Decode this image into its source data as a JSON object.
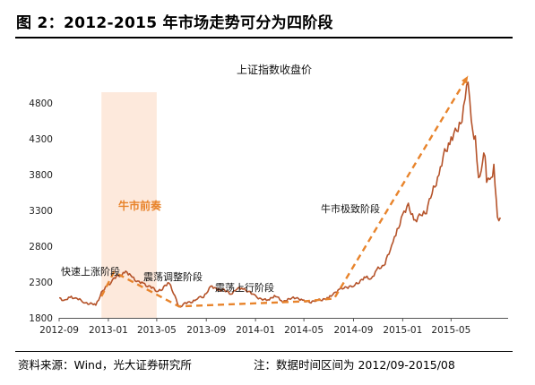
{
  "figure": {
    "title": "图 2：2012-2015 年市场走势可分为四阶段",
    "source": "资料来源：Wind，光大证券研究所",
    "note": "注：数据时间区间为 2012/09-2015/08"
  },
  "chart_data": {
    "type": "line",
    "title": "上证指数收盘价",
    "xlabel": "",
    "ylabel": "",
    "ylim": [
      1800,
      5200
    ],
    "y_ticks": [
      1800,
      2300,
      2800,
      3300,
      3800,
      4300,
      4800
    ],
    "x_ticks": [
      "2012-09",
      "2013-01",
      "2013-05",
      "2013-09",
      "2014-01",
      "2014-05",
      "2014-09",
      "2015-01",
      "2015-05"
    ],
    "grid": false,
    "legend": "none",
    "colors": {
      "line": "#b5532a",
      "trend": "#e8842c",
      "highlight": "#fde9dc",
      "bull_label": "#e8842c"
    },
    "series": [
      {
        "x": [
          "2012-09-01",
          "2012-09-15",
          "2012-10-01",
          "2012-10-15",
          "2012-11-01",
          "2012-11-15",
          "2012-12-01",
          "2012-12-15",
          "2013-01-01",
          "2013-01-15",
          "2013-02-01",
          "2013-02-10",
          "2013-03-01",
          "2013-03-15",
          "2013-04-01",
          "2013-04-15",
          "2013-05-01",
          "2013-05-15",
          "2013-06-01",
          "2013-06-15",
          "2013-06-25",
          "2013-07-10",
          "2013-07-25",
          "2013-08-10",
          "2013-08-25",
          "2013-09-12",
          "2013-10-01",
          "2013-10-15",
          "2013-11-01",
          "2013-11-15",
          "2013-12-01",
          "2013-12-15",
          "2014-01-01",
          "2014-01-15",
          "2014-02-01",
          "2014-02-20",
          "2014-03-10",
          "2014-04-01",
          "2014-04-15",
          "2014-05-01",
          "2014-05-15",
          "2014-06-01",
          "2014-06-15",
          "2014-07-01",
          "2014-07-15",
          "2014-08-01",
          "2014-08-15",
          "2014-09-01",
          "2014-09-15",
          "2014-10-01",
          "2014-10-15",
          "2014-11-01",
          "2014-11-15",
          "2014-12-01",
          "2014-12-08",
          "2014-12-15",
          "2015-01-01",
          "2015-01-15",
          "2015-02-01",
          "2015-02-15",
          "2015-03-01",
          "2015-03-15",
          "2015-04-01",
          "2015-04-15",
          "2015-05-01",
          "2015-05-15",
          "2015-05-28",
          "2015-06-05",
          "2015-06-12",
          "2015-06-20",
          "2015-06-30",
          "2015-07-08",
          "2015-07-15",
          "2015-07-24",
          "2015-07-28",
          "2015-08-05",
          "2015-08-15",
          "2015-08-24",
          "2015-08-31"
        ],
        "values": [
          2080,
          2040,
          2090,
          2070,
          2020,
          2000,
          1980,
          2150,
          2260,
          2350,
          2400,
          2440,
          2380,
          2300,
          2270,
          2230,
          2180,
          2200,
          2300,
          2100,
          1950,
          2000,
          2020,
          2070,
          2100,
          2230,
          2200,
          2180,
          2140,
          2200,
          2220,
          2160,
          2110,
          2050,
          2060,
          2100,
          2030,
          2070,
          2080,
          2030,
          2020,
          2040,
          2060,
          2070,
          2150,
          2200,
          2230,
          2240,
          2310,
          2360,
          2350,
          2480,
          2530,
          2740,
          2900,
          2950,
          3250,
          3350,
          3160,
          3230,
          3300,
          3550,
          3800,
          4100,
          4300,
          4400,
          4600,
          4900,
          5100,
          4500,
          4300,
          3750,
          3900,
          4100,
          3700,
          3700,
          3900,
          3200,
          3200
        ]
      }
    ],
    "annotations": [
      {
        "text": "快速上涨阶段"
      },
      {
        "text": "震荡调整阶段"
      },
      {
        "text": "震荡上行阶段"
      },
      {
        "text": "牛市前奏"
      },
      {
        "text": "牛市极致阶段"
      }
    ],
    "highlight_range": [
      "2012-12-15",
      "2013-05-01"
    ],
    "trend_lines": [
      {
        "points": [
          [
            "2012-12-15",
            2100
          ],
          [
            "2013-01-15",
            2440
          ],
          [
            "2013-06-25",
            1960
          ],
          [
            "2014-05-01",
            2030
          ],
          [
            "2014-07-15",
            2070
          ],
          [
            "2015-06-12",
            5178
          ]
        ]
      }
    ]
  }
}
